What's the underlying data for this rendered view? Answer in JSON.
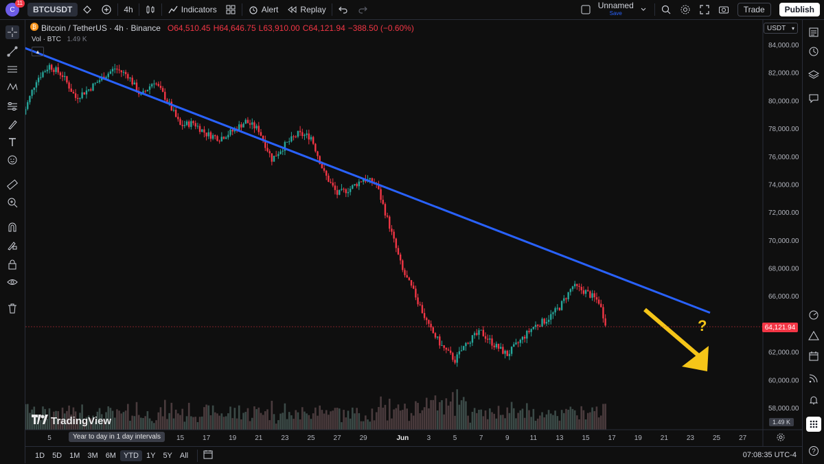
{
  "topbar": {
    "avatar_letter": "C",
    "avatar_badge": "11",
    "symbol": "BTCUSDT",
    "interval": "4h",
    "indicators_label": "Indicators",
    "alert_label": "Alert",
    "replay_label": "Replay",
    "layout_name": "Unnamed",
    "layout_sub": "Save",
    "trade_label": "Trade",
    "publish_label": "Publish"
  },
  "legend": {
    "title": "Bitcoin / TetherUS · 4h · Binance",
    "open": "O64,510.45",
    "high": "H64,646.75",
    "low": "L63,910.00",
    "close": "C64,121.94",
    "change": "−388.50 (−0.60%)",
    "vol_label": "Vol · BTC",
    "vol_value": "1.49 K"
  },
  "currency": "USDT",
  "price_tag": "64,121.94",
  "vol_tag": "1.49 K",
  "logo_text": "TradingView",
  "tooltip": "Year to day in 1 day intervals",
  "annotation": "?",
  "bottombar": {
    "ranges": [
      "1D",
      "5D",
      "1M",
      "3M",
      "6M",
      "YTD",
      "1Y",
      "5Y",
      "All"
    ],
    "active_range": "YTD",
    "clock": "07:08:35 UTC-4"
  },
  "colors": {
    "up": "#26a69a",
    "down": "#f23645",
    "trendline": "#2962ff",
    "arrow": "#f5c518",
    "background": "#0f0f0f"
  },
  "chart_data": {
    "type": "candlestick",
    "symbol": "BTCUSDT",
    "interval": "4h",
    "y_axis_ticks": [
      "84,000.00",
      "82,000.00",
      "80,000.00",
      "78,000.00",
      "76,000.00",
      "74,000.00",
      "72,000.00",
      "70,000.00",
      "68,000.00",
      "66,000.00",
      "62,000.00",
      "60,000.00",
      "58,000.00"
    ],
    "ylim": [
      57000,
      85000
    ],
    "x_axis_ticks": [
      "5",
      "Year to day in 1 day intervals",
      "15",
      "17",
      "19",
      "21",
      "23",
      "25",
      "27",
      "29",
      "Jun",
      "3",
      "5",
      "7",
      "9",
      "11",
      "13",
      "15",
      "17",
      "19",
      "21",
      "23",
      "25",
      "27"
    ],
    "x_tick_days": [
      5,
      9,
      15,
      17,
      19,
      21,
      23,
      25,
      27,
      29,
      32,
      34,
      36,
      38,
      40,
      42,
      44,
      46,
      48,
      50,
      52,
      54,
      56,
      58
    ],
    "price_path": [
      [
        3,
        79000
      ],
      [
        4,
        81500
      ],
      [
        5,
        82500
      ],
      [
        6,
        81800
      ],
      [
        7,
        80200
      ],
      [
        8,
        80800
      ],
      [
        9,
        81600
      ],
      [
        10,
        82300
      ],
      [
        11,
        81800
      ],
      [
        12,
        80300
      ],
      [
        13,
        81400
      ],
      [
        14,
        80000
      ],
      [
        15,
        78200
      ],
      [
        16,
        78400
      ],
      [
        17,
        77600
      ],
      [
        18,
        77300
      ],
      [
        19,
        77800
      ],
      [
        20,
        78500
      ],
      [
        21,
        77900
      ],
      [
        22,
        75800
      ],
      [
        23,
        76800
      ],
      [
        24,
        77600
      ],
      [
        25,
        77400
      ],
      [
        26,
        74800
      ],
      [
        27,
        73300
      ],
      [
        28,
        73700
      ],
      [
        29,
        74400
      ],
      [
        30,
        74000
      ],
      [
        31,
        71000
      ],
      [
        32,
        67800
      ],
      [
        33,
        66000
      ],
      [
        34,
        63800
      ],
      [
        35,
        62400
      ],
      [
        36,
        61400
      ],
      [
        37,
        62800
      ],
      [
        38,
        63400
      ],
      [
        39,
        62500
      ],
      [
        40,
        61800
      ],
      [
        41,
        62800
      ],
      [
        42,
        63800
      ],
      [
        43,
        64300
      ],
      [
        44,
        65200
      ],
      [
        45,
        66700
      ],
      [
        46,
        66300
      ],
      [
        47,
        65600
      ],
      [
        47.5,
        64121.94
      ]
    ],
    "last_price": 64121.94,
    "trendline": {
      "start": [
        3,
        83800
      ],
      "end": [
        55.5,
        64800
      ]
    },
    "annotation": {
      "type": "arrow",
      "direction": "down",
      "text": "?"
    }
  }
}
